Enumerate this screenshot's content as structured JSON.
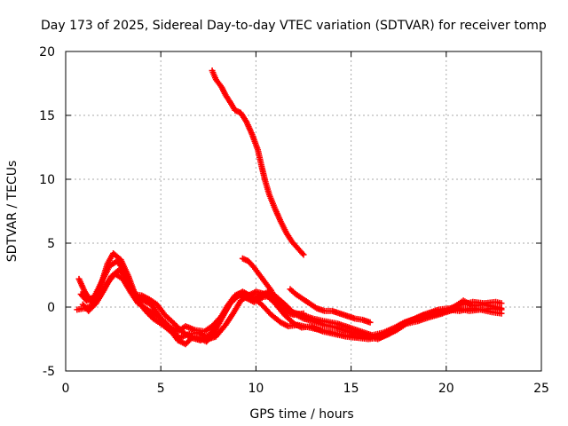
{
  "chart_data": {
    "type": "scatter",
    "title": "Day 173 of 2025, Sidereal Day-to-day VTEC variation (SDTVAR) for receiver tomp",
    "xlabel": "GPS time / hours",
    "ylabel": "SDTVAR / TECUs",
    "xlim": [
      0,
      25
    ],
    "ylim": [
      -5,
      20
    ],
    "xticks": [
      0,
      5,
      10,
      15,
      20,
      25
    ],
    "yticks": [
      -5,
      0,
      5,
      10,
      15,
      20
    ],
    "xtick_labels": [
      "0",
      "5",
      "10",
      "15",
      "20",
      "25"
    ],
    "ytick_labels": [
      "-5",
      "0",
      "5",
      "10",
      "15",
      "20"
    ],
    "grid": true,
    "marker": "+",
    "color": "#ff0000",
    "series": [
      {
        "name": "track-1",
        "points": [
          [
            0.7,
            2.2
          ],
          [
            1.0,
            1.2
          ],
          [
            1.4,
            0.3
          ],
          [
            1.8,
            1.5
          ],
          [
            2.2,
            3.4
          ],
          [
            2.5,
            4.2
          ],
          [
            2.9,
            3.7
          ],
          [
            3.3,
            2.4
          ],
          [
            3.7,
            0.8
          ],
          [
            4.1,
            0.5
          ],
          [
            4.5,
            0.2
          ],
          [
            5.0,
            -0.9
          ],
          [
            5.5,
            -1.8
          ],
          [
            5.9,
            -2.6
          ],
          [
            6.3,
            -2.9
          ],
          [
            6.7,
            -2.3
          ],
          [
            7.0,
            -2.4
          ],
          [
            7.4,
            -2.7
          ],
          [
            7.8,
            -2.0
          ],
          [
            8.2,
            -0.9
          ],
          [
            8.6,
            0.2
          ],
          [
            9.0,
            0.8
          ],
          [
            9.4,
            1.1
          ],
          [
            9.8,
            0.7
          ],
          [
            10.2,
            0.9
          ],
          [
            10.7,
            1.2
          ],
          [
            11.2,
            0.6
          ],
          [
            11.6,
            0.1
          ],
          [
            12.0,
            -0.5
          ],
          [
            12.5,
            -0.9
          ],
          [
            13.0,
            -1.1
          ],
          [
            13.6,
            -1.4
          ],
          [
            14.2,
            -1.6
          ],
          [
            14.8,
            -1.9
          ],
          [
            15.3,
            -2.1
          ],
          [
            15.8,
            -2.3
          ],
          [
            16.4,
            -2.5
          ],
          [
            17.0,
            -2.1
          ],
          [
            17.5,
            -1.6
          ],
          [
            18.0,
            -1.2
          ],
          [
            18.6,
            -0.8
          ],
          [
            19.3,
            -0.6
          ],
          [
            20.0,
            -0.4
          ],
          [
            20.6,
            -0.1
          ],
          [
            21.2,
            -0.3
          ],
          [
            21.8,
            -0.2
          ],
          [
            22.4,
            -0.4
          ],
          [
            22.9,
            -0.5
          ]
        ]
      },
      {
        "name": "track-2",
        "points": [
          [
            0.8,
            1.0
          ],
          [
            1.1,
            0.5
          ],
          [
            1.5,
            0.8
          ],
          [
            1.9,
            2.0
          ],
          [
            2.3,
            3.2
          ],
          [
            2.7,
            3.6
          ],
          [
            3.0,
            3.0
          ],
          [
            3.4,
            1.7
          ],
          [
            3.8,
            0.5
          ],
          [
            4.2,
            -0.3
          ],
          [
            4.6,
            -0.9
          ],
          [
            5.1,
            -1.4
          ],
          [
            5.6,
            -2.0
          ],
          [
            6.0,
            -2.4
          ],
          [
            6.5,
            -2.1
          ],
          [
            7.0,
            -2.0
          ],
          [
            7.5,
            -2.5
          ],
          [
            7.9,
            -2.3
          ],
          [
            8.4,
            -1.4
          ],
          [
            8.8,
            -0.5
          ],
          [
            9.2,
            0.5
          ],
          [
            9.6,
            0.9
          ],
          [
            10.0,
            1.2
          ],
          [
            10.5,
            1.0
          ],
          [
            11.0,
            0.3
          ],
          [
            11.5,
            -0.6
          ],
          [
            12.0,
            -1.3
          ],
          [
            12.4,
            -1.6
          ],
          [
            12.9,
            -1.5
          ],
          [
            13.5,
            -1.9
          ],
          [
            14.1,
            -2.1
          ],
          [
            14.7,
            -2.3
          ],
          [
            15.3,
            -2.4
          ],
          [
            15.9,
            -2.5
          ],
          [
            16.5,
            -2.4
          ],
          [
            17.1,
            -1.9
          ],
          [
            17.6,
            -1.4
          ],
          [
            18.2,
            -1.0
          ],
          [
            18.8,
            -0.6
          ],
          [
            19.4,
            -0.4
          ],
          [
            20.1,
            -0.2
          ],
          [
            20.7,
            -0.3
          ],
          [
            21.3,
            -0.1
          ],
          [
            21.9,
            -0.2
          ],
          [
            22.5,
            -0.1
          ],
          [
            22.9,
            -0.2
          ]
        ]
      },
      {
        "name": "track-3",
        "points": [
          [
            0.9,
            0.2
          ],
          [
            1.2,
            -0.3
          ],
          [
            1.6,
            0.3
          ],
          [
            2.0,
            1.3
          ],
          [
            2.4,
            2.4
          ],
          [
            2.8,
            2.9
          ],
          [
            3.2,
            2.3
          ],
          [
            3.6,
            1.0
          ],
          [
            4.0,
            0.9
          ],
          [
            4.4,
            0.6
          ],
          [
            4.8,
            0.2
          ],
          [
            5.2,
            -0.6
          ],
          [
            5.7,
            -1.3
          ],
          [
            6.1,
            -1.9
          ],
          [
            6.6,
            -2.4
          ],
          [
            7.1,
            -2.6
          ],
          [
            7.6,
            -2.1
          ],
          [
            8.0,
            -1.2
          ],
          [
            8.5,
            0.1
          ],
          [
            8.9,
            0.9
          ],
          [
            9.3,
            1.2
          ],
          [
            9.8,
            0.8
          ],
          [
            10.3,
            0.2
          ],
          [
            10.8,
            -0.6
          ],
          [
            11.3,
            -1.2
          ],
          [
            11.7,
            -1.5
          ],
          [
            12.2,
            -1.4
          ],
          [
            12.8,
            -1.6
          ],
          [
            13.4,
            -1.8
          ],
          [
            14.0,
            -2.0
          ],
          [
            14.6,
            -2.2
          ],
          [
            15.2,
            -2.3
          ],
          [
            15.8,
            -2.4
          ],
          [
            16.3,
            -2.3
          ],
          [
            16.8,
            -2.2
          ],
          [
            17.4,
            -1.8
          ],
          [
            17.9,
            -1.3
          ],
          [
            18.5,
            -1.1
          ],
          [
            19.1,
            -0.8
          ],
          [
            19.8,
            -0.5
          ],
          [
            20.4,
            0.0
          ],
          [
            20.9,
            0.5
          ],
          [
            21.4,
            0.1
          ],
          [
            22.0,
            0.2
          ],
          [
            22.6,
            0.0
          ],
          [
            22.9,
            -0.1
          ]
        ]
      },
      {
        "name": "track-4",
        "points": [
          [
            0.6,
            -0.2
          ],
          [
            1.0,
            -0.1
          ],
          [
            1.4,
            0.1
          ],
          [
            1.8,
            0.8
          ],
          [
            2.2,
            1.9
          ],
          [
            2.6,
            2.6
          ],
          [
            3.0,
            2.2
          ],
          [
            3.4,
            1.2
          ],
          [
            3.8,
            0.3
          ],
          [
            4.3,
            -0.2
          ],
          [
            4.7,
            -0.6
          ],
          [
            5.1,
            -1.0
          ],
          [
            5.5,
            -1.6
          ],
          [
            5.9,
            -1.9
          ],
          [
            6.3,
            -1.5
          ],
          [
            6.8,
            -1.8
          ],
          [
            7.3,
            -1.9
          ],
          [
            7.7,
            -1.5
          ],
          [
            8.2,
            -0.7
          ],
          [
            8.7,
            0.4
          ],
          [
            9.1,
            1.0
          ],
          [
            9.5,
            0.7
          ],
          [
            9.9,
            0.4
          ],
          [
            10.4,
            0.8
          ],
          [
            11.0,
            0.9
          ],
          [
            11.5,
            0.2
          ],
          [
            11.9,
            -0.4
          ],
          [
            12.4,
            -0.6
          ],
          [
            13.0,
            -0.9
          ],
          [
            13.6,
            -1.1
          ],
          [
            14.3,
            -1.3
          ],
          [
            14.9,
            -1.6
          ],
          [
            15.5,
            -1.9
          ],
          [
            16.1,
            -2.2
          ],
          [
            16.7,
            -2.0
          ],
          [
            17.3,
            -1.6
          ],
          [
            17.8,
            -1.2
          ],
          [
            18.4,
            -0.9
          ],
          [
            19.0,
            -0.5
          ],
          [
            19.6,
            -0.2
          ],
          [
            20.2,
            -0.1
          ],
          [
            20.8,
            0.2
          ],
          [
            21.4,
            0.4
          ],
          [
            22.0,
            0.3
          ],
          [
            22.6,
            0.4
          ],
          [
            22.9,
            0.3
          ]
        ]
      },
      {
        "name": "track-5",
        "points": [
          [
            9.3,
            3.8
          ],
          [
            9.6,
            3.6
          ],
          [
            9.9,
            3.1
          ],
          [
            10.2,
            2.5
          ],
          [
            10.5,
            1.9
          ],
          [
            10.8,
            1.3
          ],
          [
            11.0,
            0.6
          ],
          [
            11.3,
            0.0
          ],
          [
            11.6,
            -0.4
          ],
          [
            12.0,
            -0.6
          ],
          [
            12.5,
            -0.5
          ]
        ]
      },
      {
        "name": "track-6",
        "points": [
          [
            11.8,
            1.4
          ],
          [
            12.1,
            1.0
          ],
          [
            12.5,
            0.6
          ],
          [
            12.8,
            0.3
          ],
          [
            13.2,
            -0.1
          ],
          [
            13.6,
            -0.3
          ],
          [
            14.0,
            -0.3
          ],
          [
            14.4,
            -0.5
          ],
          [
            14.8,
            -0.7
          ],
          [
            15.2,
            -0.9
          ],
          [
            15.6,
            -1.0
          ],
          [
            16.0,
            -1.2
          ]
        ]
      },
      {
        "name": "track-7",
        "points": [
          [
            7.7,
            18.5
          ],
          [
            7.9,
            17.8
          ],
          [
            8.2,
            17.2
          ],
          [
            8.4,
            16.6
          ],
          [
            8.7,
            15.9
          ],
          [
            8.9,
            15.4
          ],
          [
            9.2,
            15.2
          ],
          [
            9.5,
            14.5
          ],
          [
            9.8,
            13.5
          ],
          [
            10.1,
            12.3
          ],
          [
            10.3,
            11.0
          ],
          [
            10.5,
            9.8
          ],
          [
            10.7,
            8.8
          ],
          [
            11.0,
            7.7
          ],
          [
            11.3,
            6.7
          ],
          [
            11.6,
            5.8
          ],
          [
            11.9,
            5.1
          ],
          [
            12.2,
            4.6
          ],
          [
            12.5,
            4.1
          ]
        ]
      }
    ]
  }
}
